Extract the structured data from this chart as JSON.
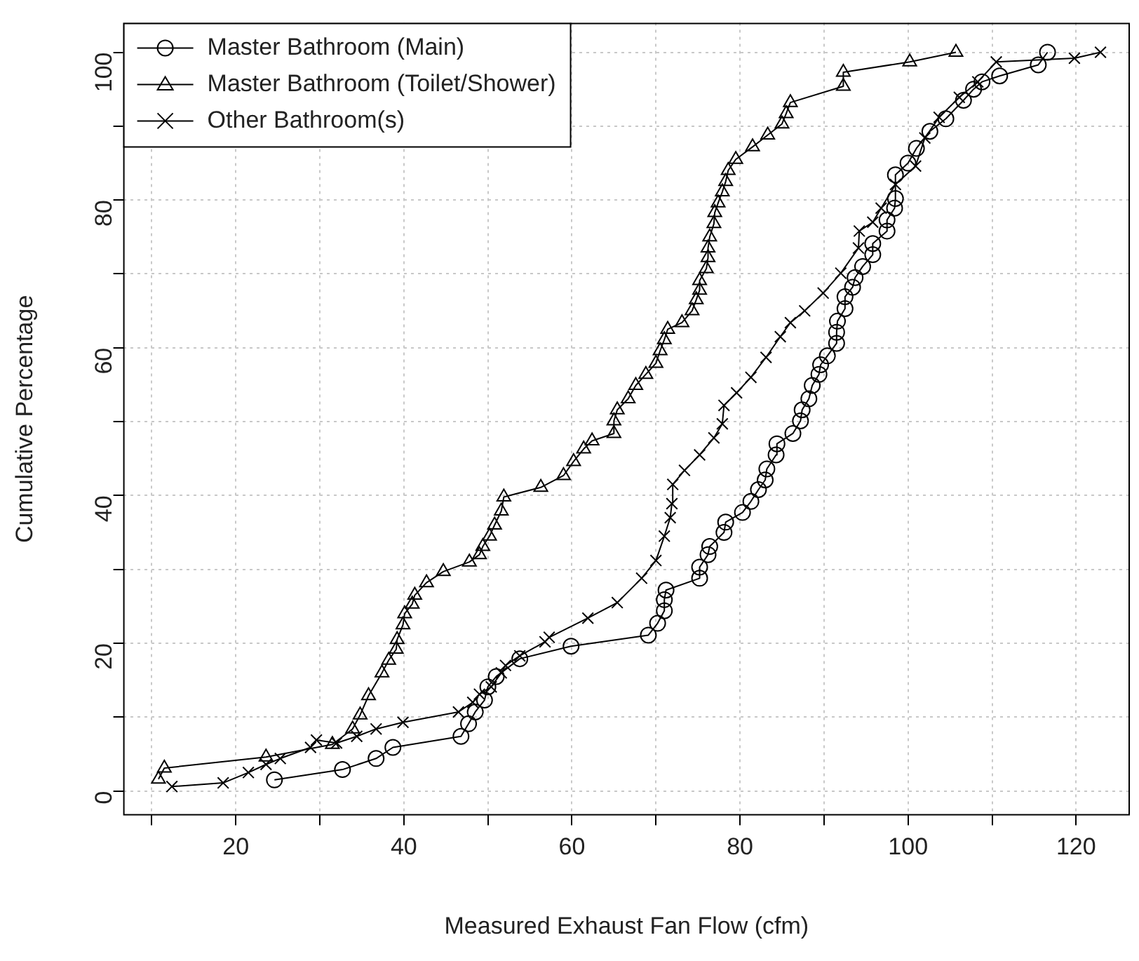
{
  "chart_data": {
    "type": "line",
    "xlabel": "Measured Exhaust Fan Flow (cfm)",
    "ylabel": "Cumulative Percentage",
    "xlim": [
      6.6,
      126.4
    ],
    "ylim": [
      -3.3,
      104
    ],
    "xticks": [
      {
        "value": 10,
        "label": null
      },
      20,
      {
        "value": 30,
        "label": null
      },
      40,
      {
        "value": 50,
        "label": null
      },
      60,
      {
        "value": 70,
        "label": null
      },
      80,
      {
        "value": 90,
        "label": null
      },
      100,
      {
        "value": 110,
        "label": null
      },
      120
    ],
    "yticks": [
      0,
      {
        "value": 10,
        "label": null
      },
      20,
      {
        "value": 30,
        "label": null
      },
      40,
      {
        "value": 50,
        "label": null
      },
      60,
      {
        "value": 70,
        "label": null
      },
      80,
      {
        "value": 90,
        "label": null
      },
      100
    ],
    "grid": true,
    "legend": "top left",
    "line_style": "solid",
    "series": [
      {
        "name": "Master Bathroom (Main)",
        "color": "#000000",
        "marker": "circle",
        "x": [
          24.6,
          32.7,
          36.7,
          38.7,
          46.8,
          47.7,
          48.5,
          49.6,
          50,
          51,
          53.8,
          59.9,
          69.1,
          70.2,
          71,
          71,
          71.2,
          75.2,
          75.2,
          76.2,
          76.4,
          78.1,
          78.3,
          80.3,
          81.3,
          82.2,
          83,
          83.2,
          84.3,
          84.4,
          86.3,
          87.2,
          87.4,
          88.2,
          88.6,
          89.4,
          89.6,
          90.4,
          91.5,
          91.5,
          91.6,
          92.5,
          92.5,
          93.4,
          93.7,
          94.6,
          95.8,
          95.8,
          97.5,
          97.5,
          98.4,
          98.5,
          98.5,
          100,
          101,
          102.6,
          104.5,
          106.6,
          107.8,
          108.8,
          110.9,
          115.5,
          116.6
        ],
        "values": [
          1.5,
          2.9,
          4.4,
          5.9,
          7.4,
          9.1,
          10.7,
          12.3,
          14.1,
          15.5,
          17.9,
          19.6,
          21.1,
          22.7,
          24.4,
          25.9,
          27.2,
          28.8,
          30.3,
          32,
          33.1,
          35,
          36.4,
          37.7,
          39.2,
          40.8,
          42.1,
          43.6,
          45.5,
          47,
          48.4,
          50.1,
          51.6,
          53.1,
          54.9,
          56.4,
          57.7,
          58.9,
          60.6,
          62.1,
          63.6,
          65.3,
          66.9,
          68.2,
          69.5,
          71,
          72.6,
          74.1,
          75.8,
          77.3,
          78.9,
          80.2,
          83.4,
          85,
          87,
          89.3,
          91,
          93.5,
          95,
          96,
          96.8,
          98.3,
          100
        ]
      },
      {
        "name": "Master Bathroom (Toilet/Shower)",
        "color": "#000000",
        "marker": "triangle",
        "x": [
          10.8,
          11.5,
          23.6,
          31.5,
          33.9,
          34.8,
          35.8,
          37.4,
          38.2,
          39.1,
          39.2,
          39.9,
          40.1,
          41,
          41.3,
          42.7,
          44.7,
          47.8,
          49,
          49.4,
          50.2,
          50.8,
          51.6,
          51.9,
          56.3,
          59,
          60.2,
          61.4,
          62.4,
          65,
          65,
          65.4,
          66.7,
          67.6,
          68.8,
          70,
          70.5,
          71,
          71.4,
          73.1,
          74.3,
          74.8,
          75.2,
          75.2,
          76,
          76.2,
          76.2,
          76.4,
          76.9,
          77,
          77.4,
          77.9,
          78.3,
          78.6,
          79.5,
          81.5,
          83.3,
          85,
          85.5,
          86,
          92.3,
          92.3,
          100.2,
          105.7
        ],
        "values": [
          1.6,
          3.1,
          4.6,
          6.3,
          8.4,
          10.3,
          12.9,
          16,
          17.7,
          19.2,
          20.5,
          22.5,
          24,
          25.3,
          26.5,
          28.2,
          29.7,
          31,
          32,
          33.1,
          34.5,
          36,
          37.9,
          39.8,
          41.1,
          42.7,
          44.6,
          46.3,
          47.4,
          48.4,
          50.1,
          51.6,
          53.1,
          54.9,
          56.4,
          57.9,
          59.6,
          61.1,
          62.5,
          63.4,
          65,
          66.5,
          67.8,
          69.1,
          70.7,
          72.2,
          73.5,
          75,
          76.8,
          78.3,
          79.6,
          81.1,
          82.5,
          84,
          85.5,
          87.2,
          88.8,
          90.3,
          91.7,
          93.2,
          95.4,
          97.3,
          98.7,
          100
        ]
      },
      {
        "name": "Other Bathroom(s)",
        "color": "#000000",
        "marker": "cross",
        "x": [
          12.4,
          18.5,
          21.5,
          23.6,
          25.3,
          28.9,
          29.6,
          32,
          34.4,
          36.7,
          39.9,
          46.5,
          48.2,
          49,
          50.4,
          51.6,
          52.1,
          53.8,
          56.8,
          57.3,
          61.9,
          65.4,
          68.3,
          70,
          71,
          71.7,
          71.9,
          72,
          73.4,
          75.2,
          76.9,
          77.9,
          78.1,
          79.6,
          81.3,
          83.1,
          84.8,
          86,
          87.7,
          89.9,
          92,
          94.1,
          94.2,
          95.8,
          96.8,
          98.5,
          100.9,
          102,
          103.7,
          106.1,
          108.3,
          110.5,
          119.8,
          122.9
        ],
        "values": [
          0.6,
          1.1,
          2.5,
          3.6,
          4.4,
          5.9,
          6.9,
          6.5,
          7.4,
          8.4,
          9.3,
          10.7,
          12,
          13.1,
          14.1,
          16,
          17,
          18.3,
          20.2,
          20.8,
          23.4,
          25.5,
          28.8,
          31.2,
          34.5,
          37,
          38.9,
          41.5,
          43.4,
          45.5,
          47.8,
          49.7,
          52.2,
          53.9,
          56,
          58.7,
          61.5,
          63.4,
          65,
          67.4,
          70.1,
          73.5,
          75.8,
          77,
          78.9,
          82.1,
          84.6,
          88.4,
          91.2,
          93.9,
          96,
          98.7,
          99.2,
          100
        ]
      }
    ]
  }
}
